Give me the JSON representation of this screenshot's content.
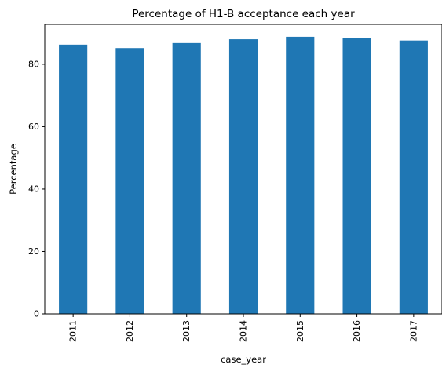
{
  "chart_data": {
    "type": "bar",
    "title": "Percentage of H1-B acceptance each year",
    "xlabel": "case_year",
    "ylabel": "Percentage",
    "categories": [
      "2011",
      "2012",
      "2013",
      "2014",
      "2015",
      "2016",
      "2017"
    ],
    "values": [
      86.3,
      85.2,
      86.8,
      88.0,
      88.8,
      88.3,
      87.6
    ],
    "ylim": [
      0,
      92.8
    ],
    "yticks": [
      0,
      20,
      40,
      60,
      80
    ],
    "bar_color": "#1f77b4",
    "grid": false,
    "legend": "none"
  }
}
